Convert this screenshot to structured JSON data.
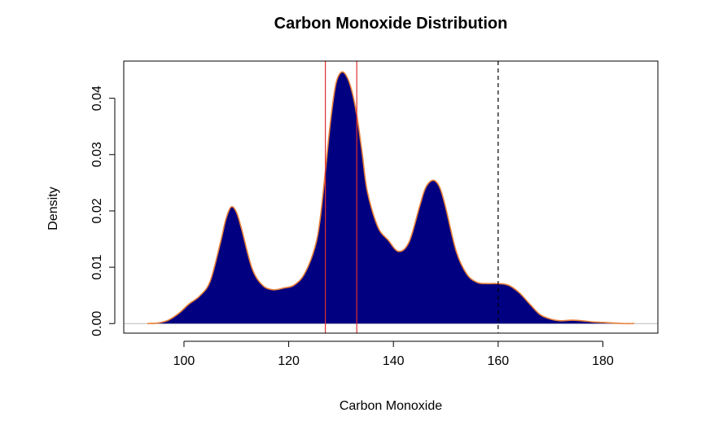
{
  "chart_data": {
    "type": "area",
    "title": "Carbon Monoxide Distribution",
    "xlabel": "Carbon Monoxide",
    "ylabel": "Density",
    "xlim": [
      88.5,
      190.5
    ],
    "ylim": [
      -0.0017,
      0.0466
    ],
    "x_ticks": [
      100,
      120,
      140,
      160,
      180
    ],
    "y_ticks": [
      0.0,
      0.01,
      0.02,
      0.03,
      0.04
    ],
    "x_tick_labels": [
      "100",
      "120",
      "140",
      "160",
      "180"
    ],
    "y_tick_labels": [
      "0.00",
      "0.01",
      "0.02",
      "0.03",
      "0.04"
    ],
    "grid": false,
    "legend": "none",
    "fill_color": "#000080",
    "line_color": "#E8803A",
    "series": [
      {
        "x": [
          93,
          95,
          97,
          99,
          101,
          103,
          105,
          107,
          108,
          109,
          110,
          111,
          113,
          115,
          117,
          119,
          121,
          123,
          125,
          126,
          127,
          128,
          129,
          130,
          131,
          132,
          133,
          134,
          135,
          137,
          139,
          141,
          143,
          145,
          146,
          147,
          148,
          149,
          150,
          152,
          154,
          156,
          158,
          160,
          162,
          164,
          166,
          168,
          170,
          172,
          174,
          176,
          178,
          180,
          182,
          184,
          186
        ],
        "y": [
          0.0,
          0.0001,
          0.0006,
          0.0018,
          0.0035,
          0.0049,
          0.0075,
          0.0145,
          0.0185,
          0.0207,
          0.0198,
          0.0168,
          0.0098,
          0.0068,
          0.006,
          0.0063,
          0.0068,
          0.0088,
          0.0135,
          0.0185,
          0.027,
          0.036,
          0.0425,
          0.0446,
          0.044,
          0.0415,
          0.037,
          0.0305,
          0.0235,
          0.0172,
          0.0148,
          0.0128,
          0.0145,
          0.0208,
          0.0238,
          0.0252,
          0.0253,
          0.0238,
          0.0205,
          0.0128,
          0.0088,
          0.0073,
          0.0071,
          0.0071,
          0.0068,
          0.0055,
          0.0035,
          0.0016,
          0.0008,
          0.0005,
          0.0006,
          0.0005,
          0.0003,
          0.0002,
          0.0001,
          0.0,
          0.0
        ]
      }
    ],
    "vlines": [
      {
        "x": 127,
        "color": "#E03030",
        "style": "solid"
      },
      {
        "x": 133,
        "color": "#E03030",
        "style": "solid"
      },
      {
        "x": 160,
        "color": "#000000",
        "style": "dashed"
      }
    ],
    "hline_zero_color": "#BBBBBB"
  }
}
